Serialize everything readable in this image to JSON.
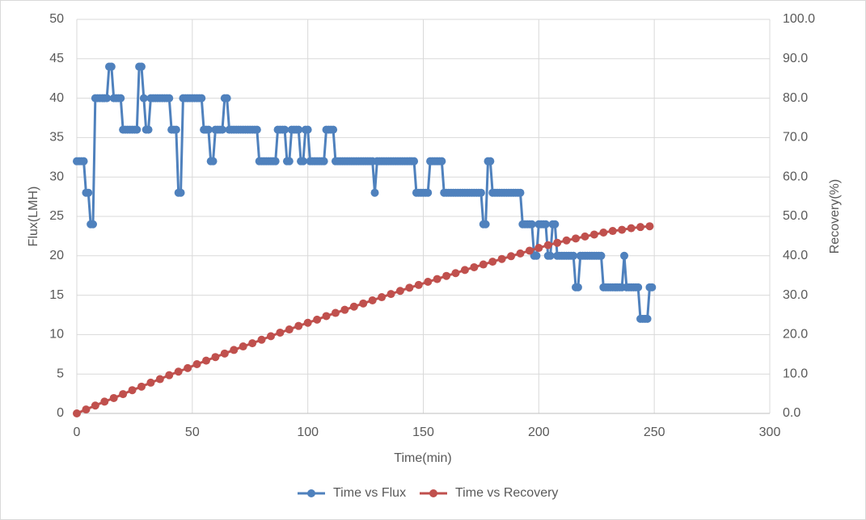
{
  "chart_data": {
    "type": "line",
    "x_label": "Time(min)",
    "y_label": "Flux(LMH)",
    "y2_label": "Recovery(%)",
    "xlim": [
      0,
      300
    ],
    "xticks": [
      0,
      50,
      100,
      150,
      200,
      250,
      300
    ],
    "ylim": [
      0,
      50
    ],
    "yticks": [
      0,
      5,
      10,
      15,
      20,
      25,
      30,
      35,
      40,
      45,
      50
    ],
    "y2lim": [
      0,
      100
    ],
    "y2ticks": [
      {
        "value": 0,
        "label": "0.0"
      },
      {
        "value": 10,
        "label": "10.0"
      },
      {
        "value": 20,
        "label": "20.0"
      },
      {
        "value": 30,
        "label": "30.0"
      },
      {
        "value": 40,
        "label": "40.0"
      },
      {
        "value": 50,
        "label": "50.0"
      },
      {
        "value": 60,
        "label": "60.0"
      },
      {
        "value": 70,
        "label": "70.0"
      },
      {
        "value": 80,
        "label": "80.0"
      },
      {
        "value": 90,
        "label": "90.0"
      },
      {
        "value": 100,
        "label": "100.0"
      }
    ],
    "grid": true,
    "legend": "bottom",
    "series": [
      {
        "name": "Time vs Flux",
        "color": "#4f81bd",
        "x": [
          0,
          1,
          2,
          3,
          4,
          5,
          6,
          7,
          8,
          9,
          10,
          11,
          12,
          13,
          14,
          15,
          16,
          17,
          18,
          19,
          20,
          21,
          22,
          23,
          24,
          25,
          26,
          27,
          28,
          29,
          30,
          31,
          32,
          33,
          34,
          35,
          36,
          37,
          38,
          39,
          40,
          41,
          42,
          43,
          44,
          45,
          46,
          47,
          48,
          49,
          50,
          51,
          52,
          53,
          54,
          55,
          56,
          57,
          58,
          59,
          60,
          61,
          62,
          63,
          64,
          65,
          66,
          67,
          68,
          69,
          70,
          71,
          72,
          73,
          74,
          75,
          76,
          77,
          78,
          79,
          80,
          81,
          82,
          83,
          84,
          85,
          86,
          87,
          88,
          89,
          90,
          91,
          92,
          93,
          94,
          95,
          96,
          97,
          98,
          99,
          100,
          101,
          102,
          103,
          104,
          105,
          106,
          107,
          108,
          109,
          110,
          111,
          112,
          113,
          114,
          115,
          116,
          117,
          118,
          119,
          120,
          121,
          122,
          123,
          124,
          125,
          126,
          127,
          128,
          129,
          130,
          131,
          132,
          133,
          134,
          135,
          136,
          137,
          138,
          139,
          140,
          141,
          142,
          143,
          144,
          145,
          146,
          147,
          148,
          149,
          150,
          151,
          152,
          153,
          154,
          155,
          156,
          157,
          158,
          159,
          160,
          161,
          162,
          163,
          164,
          165,
          166,
          167,
          168,
          169,
          170,
          171,
          172,
          173,
          174,
          175,
          176,
          177,
          178,
          179,
          180,
          181,
          182,
          183,
          184,
          185,
          186,
          187,
          188,
          189,
          190,
          191,
          192,
          193,
          194,
          195,
          196,
          197,
          198,
          199,
          200,
          201,
          202,
          203,
          204,
          205,
          206,
          207,
          208,
          209,
          210,
          211,
          212,
          213,
          214,
          215,
          216,
          217,
          218,
          219,
          220,
          221,
          222,
          223,
          224,
          225,
          226,
          227,
          228,
          229,
          230,
          231,
          232,
          233,
          234,
          235,
          236,
          237,
          238,
          239,
          240,
          241,
          242,
          243,
          244,
          245,
          246,
          247,
          248,
          249
        ],
        "values": [
          32,
          32,
          32,
          32,
          28,
          28,
          24,
          24,
          40,
          40,
          40,
          40,
          40,
          40,
          44,
          44,
          40,
          40,
          40,
          40,
          36,
          36,
          36,
          36,
          36,
          36,
          36,
          44,
          44,
          40,
          36,
          36,
          40,
          40,
          40,
          40,
          40,
          40,
          40,
          40,
          40,
          36,
          36,
          36,
          28,
          28,
          40,
          40,
          40,
          40,
          40,
          40,
          40,
          40,
          40,
          36,
          36,
          36,
          32,
          32,
          36,
          36,
          36,
          36,
          40,
          40,
          36,
          36,
          36,
          36,
          36,
          36,
          36,
          36,
          36,
          36,
          36,
          36,
          36,
          32,
          32,
          32,
          32,
          32,
          32,
          32,
          32,
          36,
          36,
          36,
          36,
          32,
          32,
          36,
          36,
          36,
          36,
          32,
          32,
          36,
          36,
          32,
          32,
          32,
          32,
          32,
          32,
          32,
          36,
          36,
          36,
          36,
          32,
          32,
          32,
          32,
          32,
          32,
          32,
          32,
          32,
          32,
          32,
          32,
          32,
          32,
          32,
          32,
          32,
          28,
          32,
          32,
          32,
          32,
          32,
          32,
          32,
          32,
          32,
          32,
          32,
          32,
          32,
          32,
          32,
          32,
          32,
          28,
          28,
          28,
          28,
          28,
          28,
          32,
          32,
          32,
          32,
          32,
          32,
          28,
          28,
          28,
          28,
          28,
          28,
          28,
          28,
          28,
          28,
          28,
          28,
          28,
          28,
          28,
          28,
          28,
          24,
          24,
          32,
          32,
          28,
          28,
          28,
          28,
          28,
          28,
          28,
          28,
          28,
          28,
          28,
          28,
          28,
          24,
          24,
          24,
          24,
          24,
          20,
          20,
          24,
          24,
          24,
          24,
          20,
          20,
          24,
          24,
          20,
          20,
          20,
          20,
          20,
          20,
          20,
          20,
          16,
          16,
          20,
          20,
          20,
          20,
          20,
          20,
          20,
          20,
          20,
          20,
          16,
          16,
          16,
          16,
          16,
          16,
          16,
          16,
          16,
          20,
          16,
          16,
          16,
          16,
          16,
          16,
          12,
          12,
          12,
          12,
          16,
          16
        ]
      },
      {
        "name": "Time vs Recovery",
        "color": "#c0504d",
        "axis": "y2",
        "x": [
          0,
          4,
          8,
          12,
          16,
          20,
          24,
          28,
          32,
          36,
          40,
          44,
          48,
          52,
          56,
          60,
          64,
          68,
          72,
          76,
          80,
          84,
          88,
          92,
          96,
          100,
          104,
          108,
          112,
          116,
          120,
          124,
          128,
          132,
          136,
          140,
          144,
          148,
          152,
          156,
          160,
          164,
          168,
          172,
          176,
          180,
          184,
          188,
          192,
          196,
          200,
          204,
          208,
          212,
          216,
          220,
          224,
          228,
          232,
          236,
          240,
          244,
          248
        ],
        "values": [
          0,
          1.0,
          2.0,
          3.0,
          3.9,
          4.9,
          5.9,
          6.8,
          7.8,
          8.7,
          9.7,
          10.6,
          11.5,
          12.5,
          13.4,
          14.3,
          15.2,
          16.1,
          17.0,
          17.8,
          18.7,
          19.6,
          20.5,
          21.3,
          22.2,
          23.0,
          23.8,
          24.7,
          25.5,
          26.3,
          27.1,
          27.9,
          28.7,
          29.5,
          30.3,
          31.1,
          31.9,
          32.6,
          33.4,
          34.1,
          34.9,
          35.6,
          36.4,
          37.1,
          37.8,
          38.5,
          39.2,
          39.9,
          40.6,
          41.3,
          42.0,
          42.7,
          43.3,
          43.9,
          44.4,
          44.9,
          45.4,
          45.9,
          46.3,
          46.6,
          47.0,
          47.3,
          47.5
        ]
      }
    ]
  }
}
